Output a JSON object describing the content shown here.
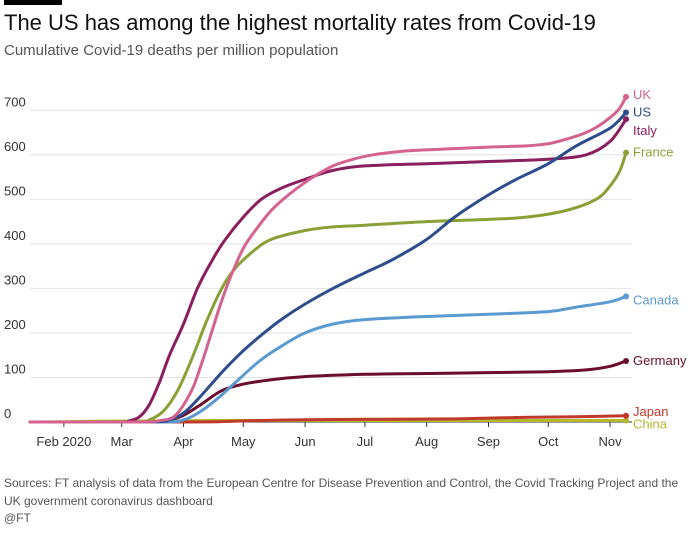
{
  "header": {
    "title": "The US has among the highest mortality rates from Covid-19",
    "subtitle": "Cumulative Covid-19 deaths per million population"
  },
  "footer": {
    "source": "Sources: FT analysis of data from the European Centre for Disease Prevention and Control, the Covid Tracking Project and the UK government coronavirus dashboard",
    "credit": "@FT"
  },
  "chart_data": {
    "type": "line",
    "title": "The US has among the highest mortality rates from Covid-19",
    "subtitle": "Cumulative Covid-19 deaths per million population",
    "xlabel": "",
    "ylabel": "",
    "x_ticks": [
      "Feb 2020",
      "Mar",
      "Apr",
      "May",
      "Jun",
      "Jul",
      "Aug",
      "Sep",
      "Oct",
      "Nov"
    ],
    "y_ticks": [
      0,
      100,
      200,
      300,
      400,
      500,
      600,
      700
    ],
    "ylim": [
      0,
      750
    ],
    "xlim": [
      "2020-01-15",
      "2020-11-12"
    ],
    "grid": "horizontal",
    "legend": "direct labels at line ends",
    "series": [
      {
        "name": "UK",
        "color": "#d4628e",
        "x": [
          "2020-01-15",
          "2020-03-10",
          "2020-03-20",
          "2020-03-28",
          "2020-04-05",
          "2020-04-10",
          "2020-04-15",
          "2020-04-20",
          "2020-04-25",
          "2020-05-01",
          "2020-05-07",
          "2020-05-14",
          "2020-05-21",
          "2020-05-28",
          "2020-06-05",
          "2020-06-15",
          "2020-06-25",
          "2020-07-05",
          "2020-07-20",
          "2020-08-05",
          "2020-08-20",
          "2020-09-05",
          "2020-09-20",
          "2020-10-01",
          "2020-10-10",
          "2020-10-20",
          "2020-10-28",
          "2020-11-05",
          "2020-11-09"
        ],
        "y": [
          0,
          0,
          3,
          15,
          70,
          130,
          200,
          270,
          330,
          390,
          430,
          470,
          500,
          525,
          550,
          575,
          590,
          600,
          608,
          612,
          615,
          618,
          620,
          625,
          635,
          650,
          670,
          700,
          730
        ]
      },
      {
        "name": "US",
        "color": "#2e4d8c",
        "x": [
          "2020-01-15",
          "2020-03-15",
          "2020-03-25",
          "2020-04-01",
          "2020-04-08",
          "2020-04-15",
          "2020-04-22",
          "2020-05-01",
          "2020-05-10",
          "2020-05-20",
          "2020-06-01",
          "2020-06-15",
          "2020-07-01",
          "2020-07-15",
          "2020-08-01",
          "2020-08-15",
          "2020-09-01",
          "2020-09-15",
          "2020-10-01",
          "2020-10-15",
          "2020-11-01",
          "2020-11-09"
        ],
        "y": [
          0,
          0,
          5,
          20,
          50,
          85,
          120,
          160,
          195,
          230,
          265,
          300,
          335,
          365,
          410,
          460,
          510,
          545,
          580,
          620,
          660,
          695
        ]
      },
      {
        "name": "Italy",
        "color": "#8a1f5e",
        "x": [
          "2020-01-15",
          "2020-02-28",
          "2020-03-05",
          "2020-03-10",
          "2020-03-15",
          "2020-03-20",
          "2020-03-25",
          "2020-04-01",
          "2020-04-08",
          "2020-04-15",
          "2020-04-22",
          "2020-05-01",
          "2020-05-10",
          "2020-05-20",
          "2020-06-01",
          "2020-06-15",
          "2020-07-01",
          "2020-08-01",
          "2020-09-01",
          "2020-10-01",
          "2020-10-20",
          "2020-11-01",
          "2020-11-09"
        ],
        "y": [
          0,
          0,
          3,
          12,
          40,
          90,
          150,
          220,
          300,
          360,
          410,
          460,
          500,
          525,
          545,
          565,
          575,
          580,
          585,
          590,
          600,
          630,
          680
        ]
      },
      {
        "name": "France",
        "color": "#8aa036",
        "x": [
          "2020-01-15",
          "2020-03-08",
          "2020-03-15",
          "2020-03-22",
          "2020-03-29",
          "2020-04-05",
          "2020-04-12",
          "2020-04-19",
          "2020-04-26",
          "2020-05-05",
          "2020-05-15",
          "2020-06-01",
          "2020-06-15",
          "2020-07-01",
          "2020-08-01",
          "2020-09-01",
          "2020-09-20",
          "2020-10-10",
          "2020-10-25",
          "2020-11-01",
          "2020-11-06",
          "2020-11-09"
        ],
        "y": [
          0,
          0,
          5,
          25,
          70,
          140,
          220,
          290,
          340,
          380,
          410,
          430,
          438,
          442,
          450,
          455,
          460,
          475,
          500,
          530,
          565,
          605
        ]
      },
      {
        "name": "Canada",
        "color": "#5b9ad1",
        "x": [
          "2020-01-15",
          "2020-03-20",
          "2020-04-01",
          "2020-04-10",
          "2020-04-20",
          "2020-05-01",
          "2020-05-10",
          "2020-05-20",
          "2020-06-01",
          "2020-06-15",
          "2020-07-01",
          "2020-08-01",
          "2020-09-01",
          "2020-10-01",
          "2020-10-15",
          "2020-11-01",
          "2020-11-09"
        ],
        "y": [
          0,
          0,
          5,
          25,
          60,
          105,
          140,
          170,
          200,
          220,
          230,
          237,
          242,
          248,
          258,
          270,
          282
        ]
      },
      {
        "name": "Germany",
        "color": "#6b0e2e",
        "x": [
          "2020-01-15",
          "2020-03-15",
          "2020-03-25",
          "2020-04-01",
          "2020-04-10",
          "2020-04-20",
          "2020-05-01",
          "2020-05-15",
          "2020-06-01",
          "2020-07-01",
          "2020-08-01",
          "2020-09-01",
          "2020-10-01",
          "2020-10-20",
          "2020-11-01",
          "2020-11-09"
        ],
        "y": [
          0,
          0,
          5,
          15,
          40,
          70,
          85,
          95,
          102,
          107,
          109,
          111,
          113,
          117,
          125,
          137
        ]
      },
      {
        "name": "Japan",
        "color": "#c0392b",
        "x": [
          "2020-01-15",
          "2020-03-25",
          "2020-04-20",
          "2020-05-15",
          "2020-06-01",
          "2020-07-01",
          "2020-08-15",
          "2020-09-15",
          "2020-10-15",
          "2020-11-09"
        ],
        "y": [
          0,
          0,
          1,
          4,
          5,
          6,
          7,
          10,
          12,
          14
        ]
      },
      {
        "name": "China",
        "color": "#b3b82e",
        "x": [
          "2020-01-15",
          "2020-02-01",
          "2020-02-15",
          "2020-03-01",
          "2020-03-15",
          "2020-04-20",
          "2020-11-09"
        ],
        "y": [
          0,
          0.5,
          1.5,
          2.2,
          2.3,
          3.3,
          3.3
        ]
      }
    ]
  }
}
